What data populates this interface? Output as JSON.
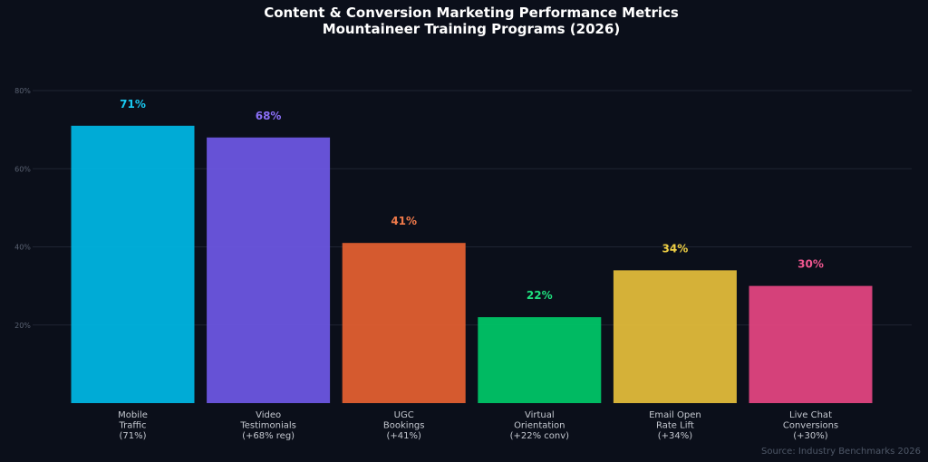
{
  "chart_data": {
    "type": "bar",
    "title": "Content & Conversion Marketing Performance Metrics",
    "subtitle": "Mountaineer Training Programs (2026)",
    "categories": [
      [
        "Mobile",
        "Traffic",
        "(71%)"
      ],
      [
        "Video",
        "Testimonials",
        "(+68% reg)"
      ],
      [
        "UGC",
        "Bookings",
        "(+41%)"
      ],
      [
        "Virtual",
        "Orientation",
        "(+22% conv)"
      ],
      [
        "Email Open",
        "Rate Lift",
        "(+34%)"
      ],
      [
        "Live Chat",
        "Conversions",
        "(+30%)"
      ]
    ],
    "values": [
      71,
      68,
      41,
      22,
      34,
      30
    ],
    "value_labels": [
      "71%",
      "68%",
      "41%",
      "22%",
      "34%",
      "30%"
    ],
    "colors": [
      "#00b4e0",
      "#6b56e0",
      "#e05f30",
      "#00c466",
      "#e0bb3a",
      "#e04580"
    ],
    "label_colors": [
      "#19c8f0",
      "#8a6ff5",
      "#f07a4a",
      "#1fe07e",
      "#f0d044",
      "#f05790"
    ],
    "yticks": [
      20,
      40,
      60,
      80
    ],
    "ytick_labels": [
      "20%",
      "40%",
      "60%",
      "80%"
    ],
    "ylim": [
      0,
      80
    ],
    "grid": true,
    "xlabel": "",
    "ylabel": "",
    "source": "Source: Industry Benchmarks 2026"
  }
}
